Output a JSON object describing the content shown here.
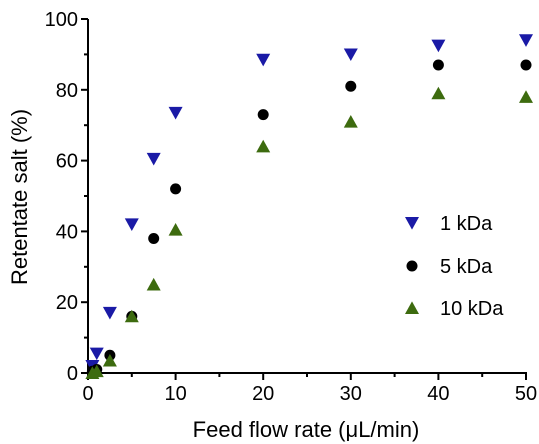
{
  "chart_data": {
    "type": "scatter",
    "xlabel": "Feed flow rate (μL/min)",
    "ylabel": "Retentate salt (%)",
    "xlim": [
      0,
      50
    ],
    "ylim": [
      0,
      100
    ],
    "xticks": [
      "0",
      "10",
      "20",
      "30",
      "40",
      "50"
    ],
    "yticks": [
      "0",
      "20",
      "40",
      "60",
      "80",
      "100"
    ],
    "grid": false,
    "legend_position": "right",
    "series": [
      {
        "name": "1 kDa",
        "marker": "triangle-down",
        "color": "#1a1aa6",
        "x": [
          0.5,
          1,
          2.5,
          5,
          7.5,
          10,
          20,
          30,
          40,
          50
        ],
        "y": [
          2,
          5.5,
          17,
          42,
          60.5,
          73.5,
          88.5,
          90,
          92.5,
          94
        ]
      },
      {
        "name": "5 kDa",
        "marker": "circle",
        "color": "#000000",
        "x": [
          0.5,
          1,
          2.5,
          5,
          7.5,
          10,
          20,
          30,
          40,
          50
        ],
        "y": [
          0.5,
          1,
          5,
          16,
          38,
          52,
          73,
          81,
          87,
          87
        ]
      },
      {
        "name": "10 kDa",
        "marker": "triangle-up",
        "color": "#3d6b0f",
        "x": [
          0.5,
          1,
          2.5,
          5,
          7.5,
          10,
          20,
          30,
          40,
          50
        ],
        "y": [
          0,
          0.5,
          3.5,
          16,
          25,
          40.5,
          64,
          71,
          79,
          78
        ]
      }
    ]
  }
}
